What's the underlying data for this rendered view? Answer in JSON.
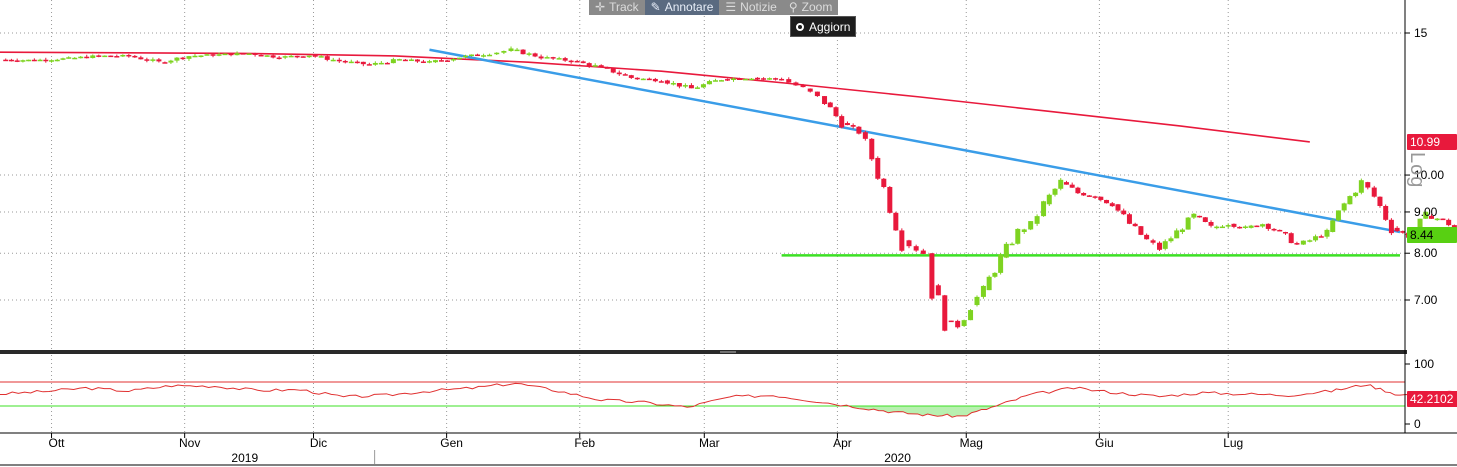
{
  "toolbar": {
    "track_label": "Track",
    "annotate_label": "Annotare",
    "news_label": "Notizie",
    "zoom_label": "Zoom",
    "update_label": "Aggiorn"
  },
  "scale_mode": "Log",
  "colors": {
    "up_candle": "#7ed321",
    "down_candle": "#e8193c",
    "moving_average": "#e8193c",
    "trendline": "#3a9de8",
    "support": "#3ce024",
    "rsi_line": "#e03030"
  },
  "chart_data": [
    {
      "type": "candlestick",
      "y_scale": "log",
      "ylim": [
        6.3,
        16.5
      ],
      "y_ticks": [
        {
          "value": 15,
          "label": "15"
        },
        {
          "value": 10,
          "label": "10.00"
        },
        {
          "value": 9,
          "label": "9.00"
        },
        {
          "value": 8,
          "label": "8.00"
        },
        {
          "value": 7,
          "label": "7.00"
        }
      ],
      "x_months": [
        {
          "label": "Ott",
          "date": "2019-10-01"
        },
        {
          "label": "Nov",
          "date": "2019-11-01"
        },
        {
          "label": "Dic",
          "date": "2019-12-01"
        },
        {
          "label": "Gen",
          "date": "2020-01-01"
        },
        {
          "label": "Feb",
          "date": "2020-02-01"
        },
        {
          "label": "Mar",
          "date": "2020-03-01"
        },
        {
          "label": "Apr",
          "date": "2020-04-01"
        },
        {
          "label": "Mag",
          "date": "2020-05-01"
        },
        {
          "label": "Giu",
          "date": "2020-06-01"
        },
        {
          "label": "Lug",
          "date": "2020-07-01"
        }
      ],
      "x_years": [
        {
          "label": "2019",
          "date": "2019-11-15"
        },
        {
          "label": "2020",
          "date": "2020-04-15"
        }
      ],
      "last_price": "8.44",
      "moving_average_last": "10.99",
      "moving_average": [
        {
          "date": "2019-09-19",
          "value": 14.2
        },
        {
          "date": "2019-11-15",
          "value": 14.15
        },
        {
          "date": "2019-12-20",
          "value": 14.05
        },
        {
          "date": "2020-01-20",
          "value": 13.8
        },
        {
          "date": "2020-02-20",
          "value": 13.45
        },
        {
          "date": "2020-03-20",
          "value": 13.0
        },
        {
          "date": "2020-04-20",
          "value": 12.5
        },
        {
          "date": "2020-05-20",
          "value": 12.0
        },
        {
          "date": "2020-06-20",
          "value": 11.5
        },
        {
          "date": "2020-07-20",
          "value": 10.99
        }
      ],
      "trendline": [
        {
          "date": "2019-12-28",
          "value": 14.3
        },
        {
          "date": "2020-08-10",
          "value": 8.5
        }
      ],
      "support_line": [
        {
          "date": "2020-03-19",
          "value": 7.95
        },
        {
          "date": "2020-08-10",
          "value": 7.95
        }
      ],
      "price_series": [
        [
          "2019-09-19",
          13.9
        ],
        [
          "2019-09-27",
          13.88
        ],
        [
          "2019-10-05",
          13.95
        ],
        [
          "2019-10-12",
          14.05
        ],
        [
          "2019-10-19",
          14.05
        ],
        [
          "2019-10-26",
          13.8
        ],
        [
          "2019-11-02",
          14.05
        ],
        [
          "2019-11-09",
          14.1
        ],
        [
          "2019-11-16",
          14.15
        ],
        [
          "2019-11-23",
          14.0
        ],
        [
          "2019-11-30",
          14.08
        ],
        [
          "2019-12-07",
          13.85
        ],
        [
          "2019-12-14",
          13.7
        ],
        [
          "2019-12-21",
          13.9
        ],
        [
          "2019-12-28",
          13.8
        ],
        [
          "2020-01-04",
          14.0
        ],
        [
          "2020-01-11",
          14.15
        ],
        [
          "2020-01-16",
          14.3
        ],
        [
          "2020-01-23",
          14.0
        ],
        [
          "2020-01-30",
          13.85
        ],
        [
          "2020-02-06",
          13.6
        ],
        [
          "2020-02-13",
          13.2
        ],
        [
          "2020-02-20",
          13.1
        ],
        [
          "2020-02-27",
          12.8
        ],
        [
          "2020-03-05",
          13.15
        ],
        [
          "2020-03-12",
          13.2
        ],
        [
          "2020-03-19",
          13.15
        ],
        [
          "2020-03-24",
          12.8
        ],
        [
          "2020-03-29",
          12.3
        ],
        [
          "2020-04-02",
          11.6
        ],
        [
          "2020-04-06",
          11.3
        ],
        [
          "2020-04-09",
          10.5
        ],
        [
          "2020-04-16",
          8.3
        ],
        [
          "2020-04-21",
          8.0
        ],
        [
          "2020-04-23",
          7.3
        ],
        [
          "2020-04-26",
          6.6
        ],
        [
          "2020-04-29",
          6.5
        ],
        [
          "2020-05-02",
          6.9
        ],
        [
          "2020-05-05",
          7.2
        ],
        [
          "2020-05-09",
          7.9
        ],
        [
          "2020-05-13",
          8.5
        ],
        [
          "2020-05-16",
          8.7
        ],
        [
          "2020-05-19",
          9.2
        ],
        [
          "2020-05-23",
          9.8
        ],
        [
          "2020-05-27",
          9.5
        ],
        [
          "2020-05-31",
          9.4
        ],
        [
          "2020-06-04",
          9.2
        ],
        [
          "2020-06-08",
          8.7
        ],
        [
          "2020-06-12",
          8.3
        ],
        [
          "2020-06-15",
          8.1
        ],
        [
          "2020-06-19",
          8.5
        ],
        [
          "2020-06-23",
          8.9
        ],
        [
          "2020-06-27",
          8.6
        ],
        [
          "2020-07-01",
          8.7
        ],
        [
          "2020-07-05",
          8.6
        ],
        [
          "2020-07-09",
          8.7
        ],
        [
          "2020-07-13",
          8.5
        ],
        [
          "2020-07-17",
          8.2
        ],
        [
          "2020-07-20",
          8.3
        ],
        [
          "2020-07-24",
          8.5
        ],
        [
          "2020-07-28",
          9.2
        ],
        [
          "2020-08-01",
          9.8
        ],
        [
          "2020-08-04",
          9.4
        ],
        [
          "2020-08-08",
          8.6
        ],
        [
          "2020-08-12",
          8.4
        ],
        [
          "2020-08-16",
          8.9
        ],
        [
          "2020-08-20",
          8.8
        ],
        [
          "2020-08-24",
          8.5
        ],
        [
          "2020-08-28",
          8.45
        ],
        [
          "2020-09-01",
          8.6
        ],
        [
          "2020-09-05",
          8.75
        ],
        [
          "2020-09-09",
          8.55
        ],
        [
          "2020-09-13",
          8.5
        ],
        [
          "2020-09-17",
          8.8
        ],
        [
          "2020-09-21",
          8.9
        ],
        [
          "2020-09-25",
          8.55
        ],
        [
          "2020-09-29",
          8.44
        ]
      ]
    },
    {
      "type": "line",
      "name": "RSI",
      "ylim": [
        0,
        100
      ],
      "y_ticks": [
        {
          "value": 100,
          "label": "100"
        },
        {
          "value": 0,
          "label": "0"
        }
      ],
      "upper_band": 70,
      "lower_band": 30,
      "last_value": "42.2102",
      "values": [
        [
          "2019-09-19",
          50
        ],
        [
          "2019-09-29",
          54
        ],
        [
          "2019-10-09",
          60
        ],
        [
          "2019-10-19",
          55
        ],
        [
          "2019-10-29",
          64
        ],
        [
          "2019-11-08",
          63
        ],
        [
          "2019-11-18",
          56
        ],
        [
          "2019-11-28",
          57
        ],
        [
          "2019-12-08",
          45
        ],
        [
          "2019-12-18",
          48
        ],
        [
          "2019-12-28",
          55
        ],
        [
          "2020-01-07",
          60
        ],
        [
          "2020-01-17",
          68
        ],
        [
          "2020-01-27",
          55
        ],
        [
          "2020-02-06",
          40
        ],
        [
          "2020-02-16",
          36
        ],
        [
          "2020-02-26",
          28
        ],
        [
          "2020-03-07",
          45
        ],
        [
          "2020-03-17",
          48
        ],
        [
          "2020-03-27",
          38
        ],
        [
          "2020-04-06",
          28
        ],
        [
          "2020-04-14",
          20
        ],
        [
          "2020-04-22",
          15
        ],
        [
          "2020-04-30",
          13
        ],
        [
          "2020-05-08",
          30
        ],
        [
          "2020-05-16",
          49
        ],
        [
          "2020-05-26",
          60
        ],
        [
          "2020-06-05",
          52
        ],
        [
          "2020-06-15",
          46
        ],
        [
          "2020-06-25",
          52
        ],
        [
          "2020-07-05",
          50
        ],
        [
          "2020-07-15",
          48
        ],
        [
          "2020-07-25",
          55
        ],
        [
          "2020-08-02",
          66
        ],
        [
          "2020-08-10",
          48
        ],
        [
          "2020-08-20",
          54
        ],
        [
          "2020-08-30",
          50
        ],
        [
          "2020-09-09",
          52
        ],
        [
          "2020-09-19",
          58
        ],
        [
          "2020-09-29",
          42.2
        ]
      ]
    }
  ]
}
